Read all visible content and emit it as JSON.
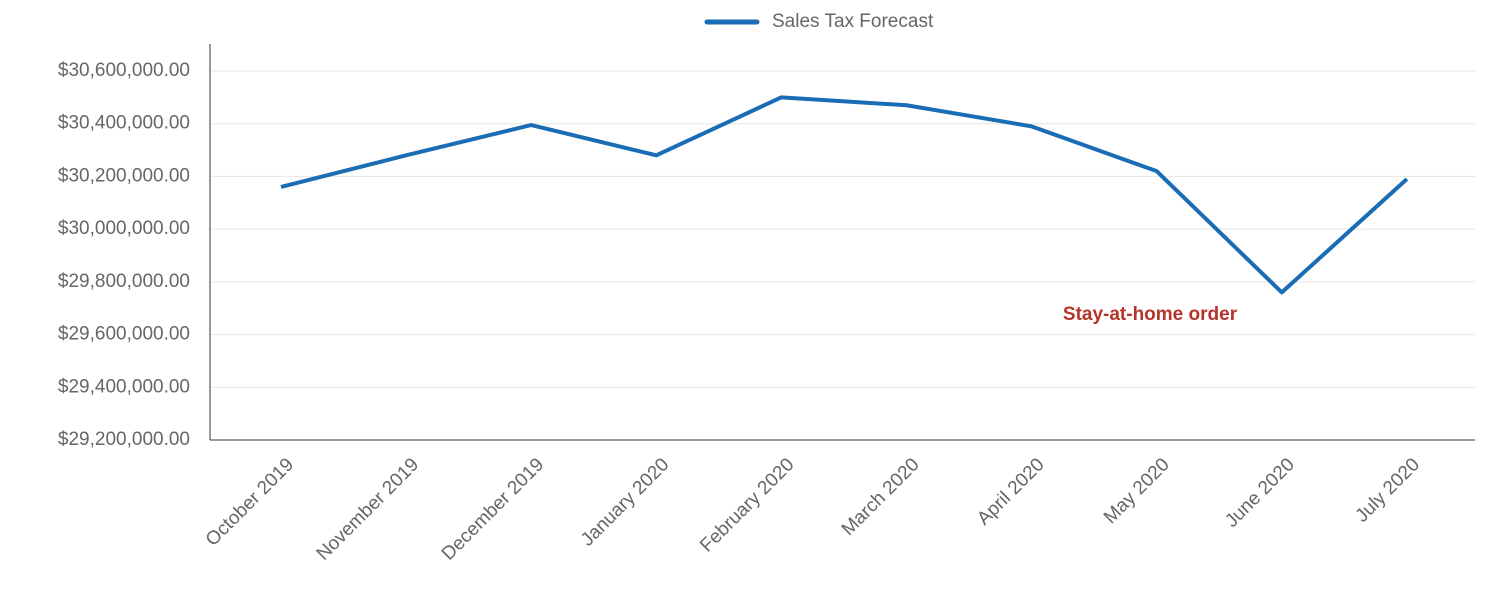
{
  "chart_data": {
    "type": "line",
    "categories": [
      "October 2019",
      "November 2019",
      "December 2019",
      "January 2020",
      "February 2020",
      "March 2020",
      "April 2020",
      "May 2020",
      "June 2020",
      "July 2020"
    ],
    "series": [
      {
        "name": "Sales Tax Forecast",
        "color": "#1a6db5",
        "values": [
          30160000,
          30280000,
          30395000,
          30280000,
          30500000,
          30470000,
          30390000,
          30220000,
          29760000,
          30190000
        ]
      }
    ],
    "ylim": [
      29200000,
      30600000
    ],
    "yticks": [
      {
        "value": 29200000,
        "label": "$29,200,000.00"
      },
      {
        "value": 29400000,
        "label": "$29,400,000.00"
      },
      {
        "value": 29600000,
        "label": "$29,600,000.00"
      },
      {
        "value": 29800000,
        "label": "$29,800,000.00"
      },
      {
        "value": 30000000,
        "label": "$30,000,000.00"
      },
      {
        "value": 30200000,
        "label": "$30,200,000.00"
      },
      {
        "value": 30400000,
        "label": "$30,400,000.00"
      },
      {
        "value": 30600000,
        "label": "$30,600,000.00"
      }
    ],
    "annotation": "Stay-at-home order",
    "grid": true,
    "legend": "top"
  }
}
